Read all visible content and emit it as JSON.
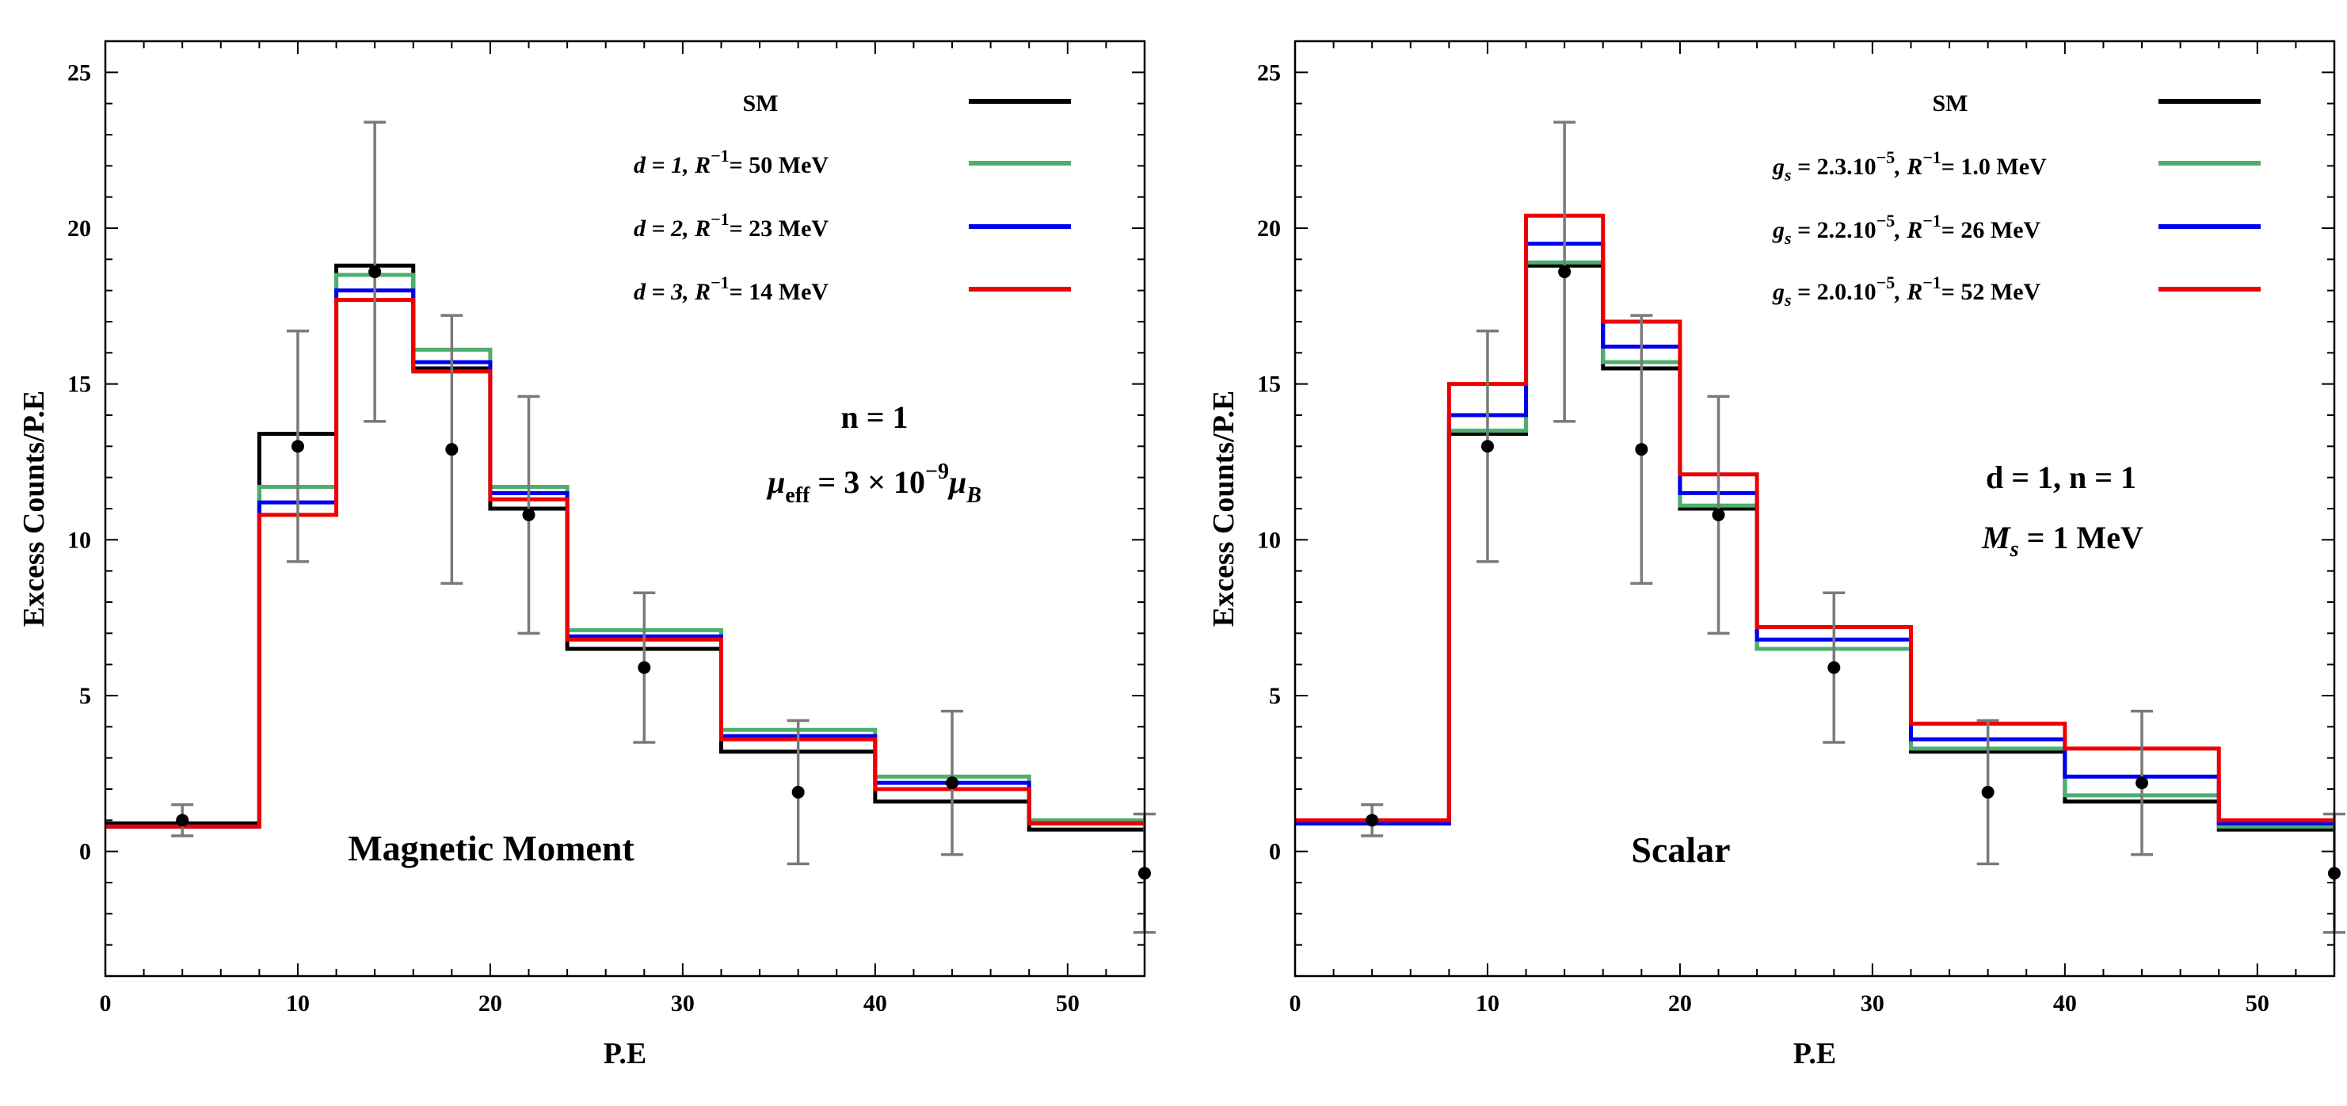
{
  "chart_data": [
    {
      "type": "step",
      "title": "Magnetic Moment",
      "xlabel": "P.E",
      "ylabel": "Excess Counts/P.E",
      "xlim": [
        0,
        54
      ],
      "ylim": [
        -4,
        26
      ],
      "x_ticks": [
        0,
        10,
        20,
        30,
        40,
        50
      ],
      "y_ticks": [
        0,
        5,
        10,
        15,
        20,
        25
      ],
      "bin_edges": [
        0,
        8,
        12,
        16,
        20,
        24,
        32,
        40,
        48,
        54
      ],
      "series": [
        {
          "name": "SM",
          "color": "#000000",
          "values": [
            0.9,
            13.4,
            18.8,
            15.5,
            11.0,
            6.5,
            3.2,
            1.6,
            0.7
          ]
        },
        {
          "name": "d = 1, R⁻¹= 50 MeV",
          "color": "#4caf6e",
          "values": [
            0.8,
            11.7,
            18.5,
            16.1,
            11.7,
            7.1,
            3.9,
            2.4,
            1.0
          ]
        },
        {
          "name": "d = 2, R⁻¹= 23 MeV",
          "color": "#0000ee",
          "values": [
            0.8,
            11.2,
            18.0,
            15.7,
            11.5,
            6.9,
            3.7,
            2.2,
            0.9
          ]
        },
        {
          "name": "d = 3, R⁻¹= 14 MeV",
          "color": "#ee0000",
          "values": [
            0.8,
            10.8,
            17.7,
            15.4,
            11.3,
            6.8,
            3.6,
            2.0,
            0.9
          ]
        }
      ],
      "data_points": {
        "x": [
          4,
          10,
          14,
          18,
          22,
          28,
          36,
          44,
          54
        ],
        "y": [
          1.0,
          13.0,
          18.6,
          12.9,
          10.8,
          5.9,
          1.9,
          2.2,
          -0.7
        ],
        "yerr": [
          0.5,
          3.7,
          4.8,
          4.3,
          3.8,
          2.4,
          2.3,
          2.3,
          1.9
        ]
      },
      "legend": [
        {
          "label_main": "SM",
          "label_sup": "",
          "label_tail": ""
        },
        {
          "label_main": "d = 1,  R",
          "label_sup": "−1",
          "label_tail": "= 50 MeV"
        },
        {
          "label_main": "d = 2,  R",
          "label_sup": "−1",
          "label_tail": "= 23 MeV"
        },
        {
          "label_main": "d = 3,  R",
          "label_sup": "−1",
          "label_tail": "= 14 MeV"
        }
      ],
      "annotations": [
        "n = 1",
        "μ",
        "eff",
        " = 3 × 10",
        "−9",
        "μ",
        "B"
      ]
    },
    {
      "type": "step",
      "title": "Scalar",
      "xlabel": "P.E",
      "ylabel": "Excess Counts/P.E",
      "xlim": [
        0,
        54
      ],
      "ylim": [
        -4,
        26
      ],
      "x_ticks": [
        0,
        10,
        20,
        30,
        40,
        50
      ],
      "y_ticks": [
        0,
        5,
        10,
        15,
        20,
        25
      ],
      "bin_edges": [
        0,
        8,
        12,
        16,
        20,
        24,
        32,
        40,
        48,
        54
      ],
      "series": [
        {
          "name": "SM",
          "color": "#000000",
          "values": [
            0.9,
            13.4,
            18.8,
            15.5,
            11.0,
            6.5,
            3.2,
            1.6,
            0.7
          ]
        },
        {
          "name": "g_s = 2.3.10⁻⁵, R⁻¹= 1.0 MeV",
          "color": "#4caf6e",
          "values": [
            0.9,
            13.5,
            18.9,
            15.7,
            11.1,
            6.5,
            3.3,
            1.8,
            0.8
          ]
        },
        {
          "name": "g_s = 2.2.10⁻⁵, R⁻¹= 26 MeV",
          "color": "#0000ee",
          "values": [
            0.9,
            14.0,
            19.5,
            16.2,
            11.5,
            6.8,
            3.6,
            2.4,
            0.9
          ]
        },
        {
          "name": "g_s = 2.0.10⁻⁵, R⁻¹= 52 MeV",
          "color": "#ee0000",
          "values": [
            1.0,
            15.0,
            20.4,
            17.0,
            12.1,
            7.2,
            4.1,
            3.3,
            1.0
          ]
        }
      ],
      "data_points": {
        "x": [
          4,
          10,
          14,
          18,
          22,
          28,
          36,
          44,
          54
        ],
        "y": [
          1.0,
          13.0,
          18.6,
          12.9,
          10.8,
          5.9,
          1.9,
          2.2,
          -0.7
        ],
        "yerr": [
          0.5,
          3.7,
          4.8,
          4.3,
          3.8,
          2.4,
          2.3,
          2.3,
          1.9
        ]
      },
      "legend": [
        {
          "label_main": "SM",
          "label_sup": "",
          "label_tail": ""
        },
        {
          "label_main": "g",
          "label_sub": "s",
          "label_mid": " = 2.3.10",
          "label_sup": "−5",
          "label_mid2": ", R",
          "label_sup2": "−1",
          "label_tail": "= 1.0 MeV"
        },
        {
          "label_main": "g",
          "label_sub": "s",
          "label_mid": " = 2.2.10",
          "label_sup": "−5",
          "label_mid2": ", R",
          "label_sup2": "−1",
          "label_tail": "= 26 MeV"
        },
        {
          "label_main": "g",
          "label_sub": "s",
          "label_mid": " = 2.0.10",
          "label_sup": "−5",
          "label_mid2": ", R",
          "label_sup2": "−1",
          "label_tail": "= 52 MeV"
        }
      ],
      "annotations": [
        "d = 1, n = 1",
        "M",
        "s",
        " = 1 MeV"
      ]
    }
  ]
}
